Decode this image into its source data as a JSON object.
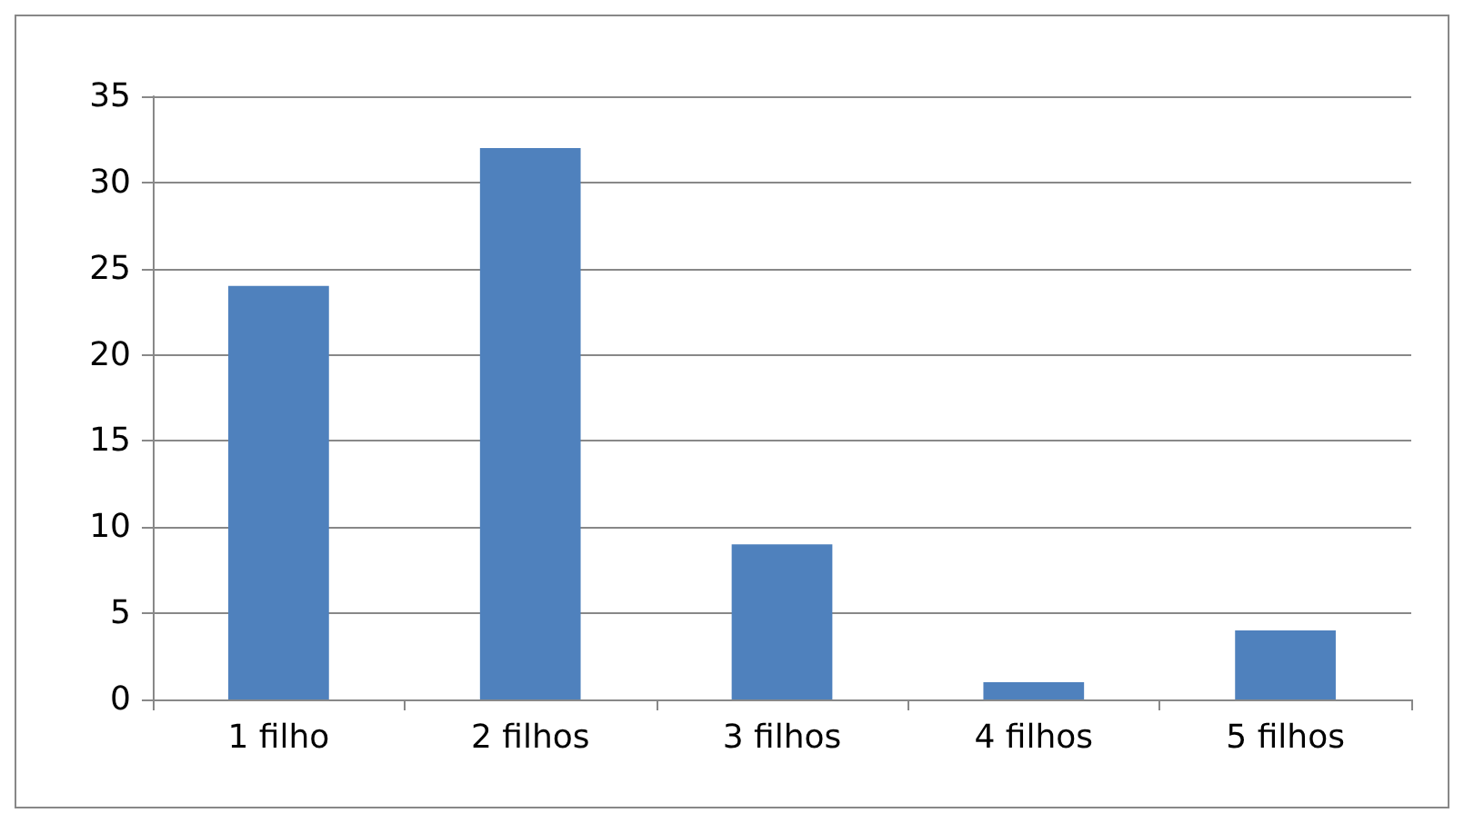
{
  "chart_data": {
    "type": "bar",
    "categories": [
      "1 filho",
      "2 filhos",
      "3 filhos",
      "4 filhos",
      "5 filhos"
    ],
    "values": [
      24,
      32,
      9,
      1,
      4
    ],
    "color": "#4f81bd",
    "ylim": [
      0,
      35
    ],
    "yticks": [
      0,
      5,
      10,
      15,
      20,
      25,
      30,
      35
    ],
    "grid": "y"
  }
}
